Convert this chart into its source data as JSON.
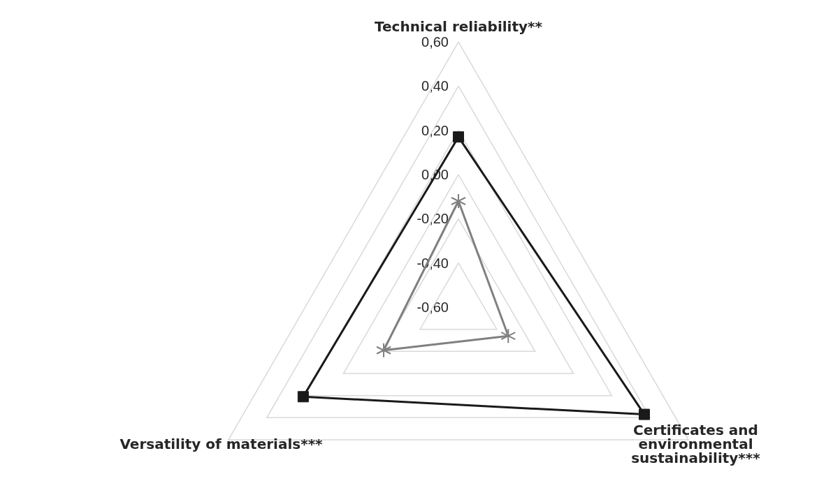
{
  "chart_data": {
    "type": "radar",
    "categories": [
      "Technical reliability**",
      "Certificates and environmental sustainability***",
      "Versatility of materials***"
    ],
    "series": [
      {
        "color": "#1a1a1a",
        "marker": "square",
        "values": [
          0.17,
          0.37,
          0.21
        ]
      },
      {
        "color": "#808080",
        "marker": "star",
        "values": [
          -0.12,
          -0.34,
          -0.21
        ]
      }
    ],
    "ylim": [
      -0.6,
      0.6
    ],
    "yticks": [
      {
        "value": -0.6,
        "label": "-0,60"
      },
      {
        "value": -0.4,
        "label": "-0,40"
      },
      {
        "value": -0.2,
        "label": "-0,20"
      },
      {
        "value": 0,
        "label": "0,00"
      },
      {
        "value": 0.2,
        "label": "0,20"
      },
      {
        "value": 0.4,
        "label": "0,40"
      },
      {
        "value": 0.6,
        "label": "0,60"
      }
    ],
    "grid": true
  }
}
